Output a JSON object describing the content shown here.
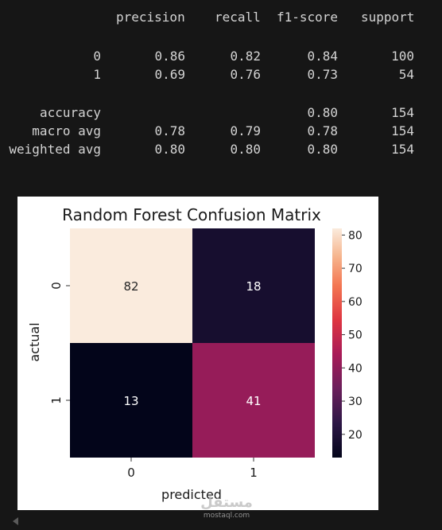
{
  "report": {
    "headers": [
      "precision",
      "recall",
      "f1-score",
      "support"
    ],
    "rows": [
      {
        "label": "0",
        "precision": "0.86",
        "recall": "0.82",
        "f1": "0.84",
        "support": "100"
      },
      {
        "label": "1",
        "precision": "0.69",
        "recall": "0.76",
        "f1": "0.73",
        "support": "54"
      },
      {
        "label": "accuracy",
        "precision": "",
        "recall": "",
        "f1": "0.80",
        "support": "154"
      },
      {
        "label": "macro avg",
        "precision": "0.78",
        "recall": "0.79",
        "f1": "0.78",
        "support": "154"
      },
      {
        "label": "weighted avg",
        "precision": "0.80",
        "recall": "0.80",
        "f1": "0.80",
        "support": "154"
      }
    ]
  },
  "chart_data": {
    "type": "heatmap",
    "title": "Random Forest Confusion Matrix",
    "xlabel": "predicted",
    "ylabel": "actual",
    "x_categories": [
      "0",
      "1"
    ],
    "y_categories": [
      "0",
      "1"
    ],
    "values": [
      [
        82,
        18
      ],
      [
        13,
        41
      ]
    ],
    "colorbar": {
      "min": 13,
      "max": 82,
      "ticks": [
        "20",
        "30",
        "40",
        "50",
        "60",
        "70",
        "80"
      ]
    },
    "colormap": "rocket"
  },
  "watermark": {
    "logo": "مستقل",
    "site": "mostaql.com"
  }
}
